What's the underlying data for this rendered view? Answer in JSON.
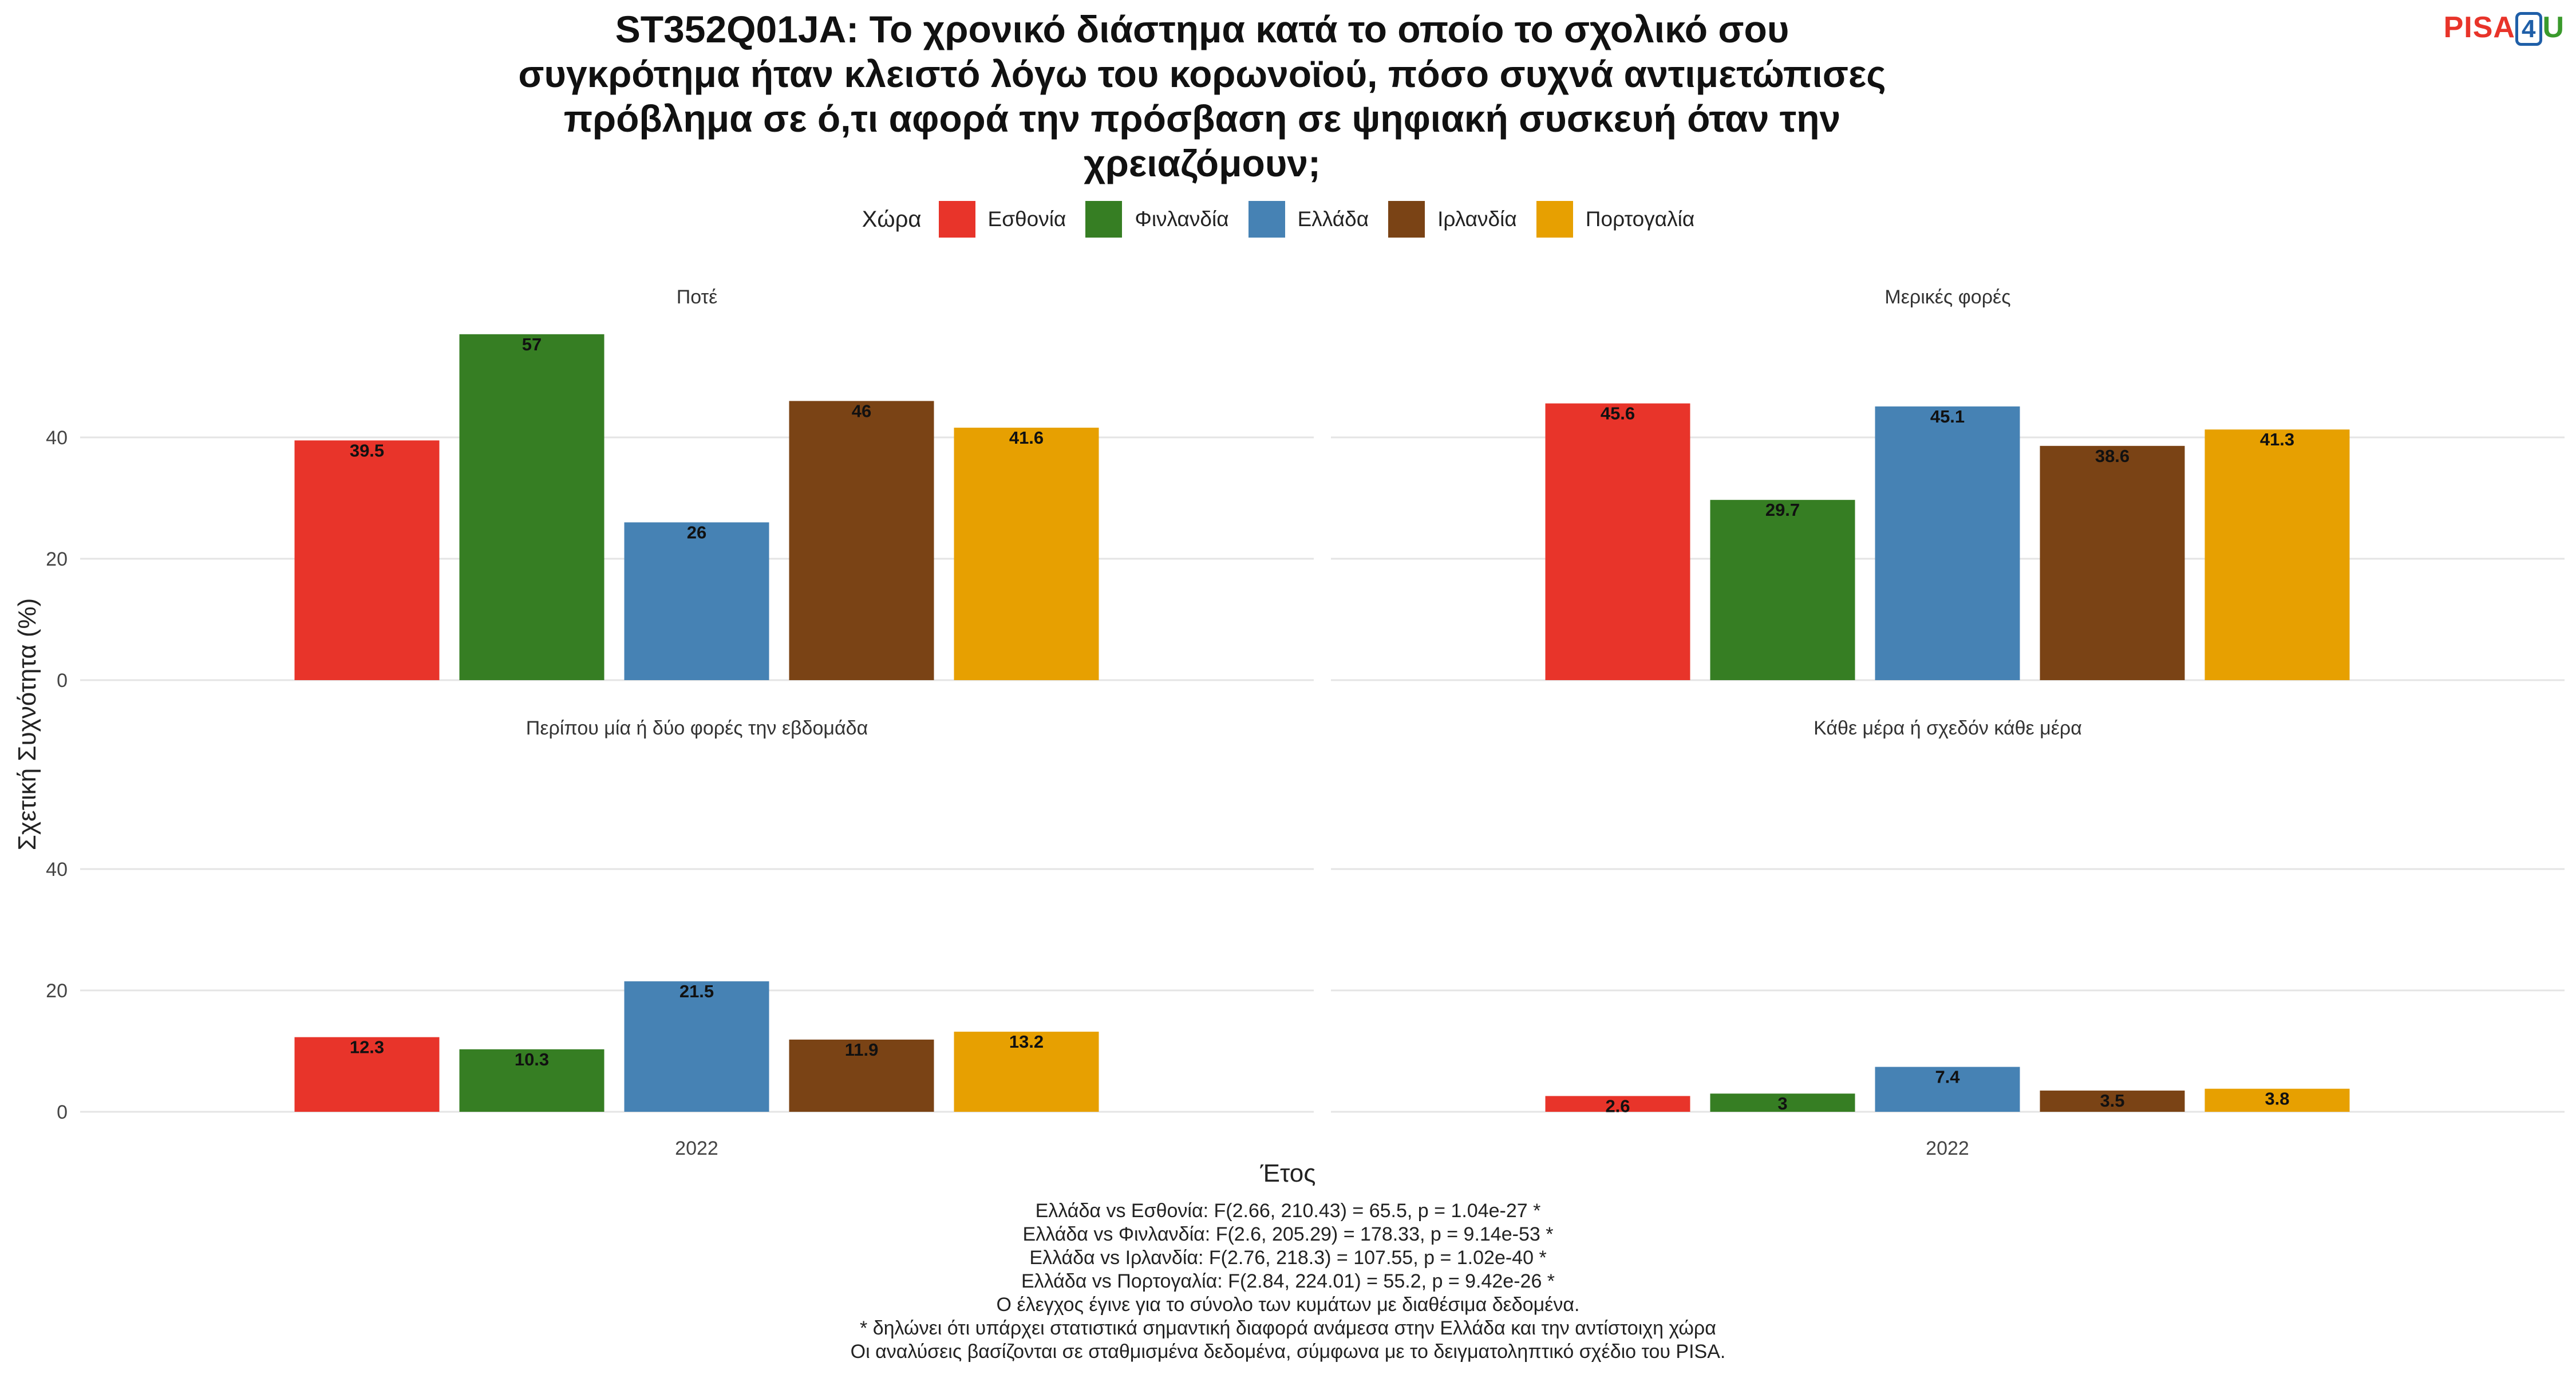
{
  "title": "ST352Q01JA: Το χρονικό διάστημα κατά το οποίο το σχολικό σου συγκρότημα ήταν κλειστό λόγω του κορωνοϊού, πόσο συχνά αντιμετώπισες πρόβλημα σε ό,τι αφορά την πρόσβαση σε ψηφιακή συσκευή όταν την χρειαζόμουν;",
  "logo": {
    "part1": "PISA",
    "part2": "4",
    "part3": "U"
  },
  "legend": {
    "title": "Χώρα",
    "items": [
      {
        "label": "Εσθονία",
        "color": "#E8342A"
      },
      {
        "label": "Φινλανδία",
        "color": "#367E23"
      },
      {
        "label": "Ελλάδα",
        "color": "#4682B4"
      },
      {
        "label": "Ιρλανδία",
        "color": "#7A4315"
      },
      {
        "label": "Πορτογαλία",
        "color": "#E7A001"
      }
    ]
  },
  "ylabel": "Σχετική Συχνότητα (%)",
  "xlabel": "Έτος",
  "notes": [
    "Ελλάδα vs Εσθονία: F(2.66, 210.43) = 65.5, p = 1.04e-27 *",
    "Ελλάδα vs Φινλανδία: F(2.6, 205.29) = 178.33, p = 9.14e-53 *",
    "Ελλάδα vs Ιρλανδία: F(2.76, 218.3) = 107.55, p = 1.02e-40 *",
    "Ελλάδα vs Πορτογαλία: F(2.84, 224.01) = 55.2, p = 9.42e-26 *",
    "Ο έλεγχος έγινε για το σύνολο των κυμάτων με διαθέσιμα δεδομένα.",
    "* δηλώνει ότι υπάρχει στατιστικά σημαντική διαφορά ανάμεσα στην Ελλάδα και την αντίστοιχη χώρα",
    "Οι αναλύσεις βασίζονται σε σταθμισμένα δεδομένα, σύμφωνα με το δειγματοληπτικό σχέδιο του PISA."
  ],
  "chart_data": {
    "type": "bar",
    "x_category": "2022",
    "series_names": [
      "Εσθονία",
      "Φινλανδία",
      "Ελλάδα",
      "Ιρλανδία",
      "Πορτογαλία"
    ],
    "yticks": [
      0,
      20,
      40
    ],
    "ylim": [
      0,
      60
    ],
    "panels": [
      {
        "title": "Ποτέ",
        "values": [
          39.5,
          57,
          26,
          46,
          41.6
        ],
        "labels": [
          "39.5",
          "57",
          "26",
          "46",
          "41.6"
        ]
      },
      {
        "title": "Μερικές φορές",
        "values": [
          45.6,
          29.7,
          45.1,
          38.6,
          41.3
        ],
        "labels": [
          "45.6",
          "29.7",
          "45.1",
          "38.6",
          "41.3"
        ]
      },
      {
        "title": "Περίπου μία ή δύο φορές την εβδομάδα",
        "values": [
          12.3,
          10.3,
          21.5,
          11.9,
          13.2
        ],
        "labels": [
          "12.3",
          "10.3",
          "21.5",
          "11.9",
          "13.2"
        ]
      },
      {
        "title": "Κάθε μέρα ή σχεδόν κάθε μέρα",
        "values": [
          2.6,
          3,
          7.4,
          3.5,
          3.8
        ],
        "labels": [
          "2.6",
          "3",
          "7.4",
          "3.5",
          "3.8"
        ]
      }
    ]
  }
}
